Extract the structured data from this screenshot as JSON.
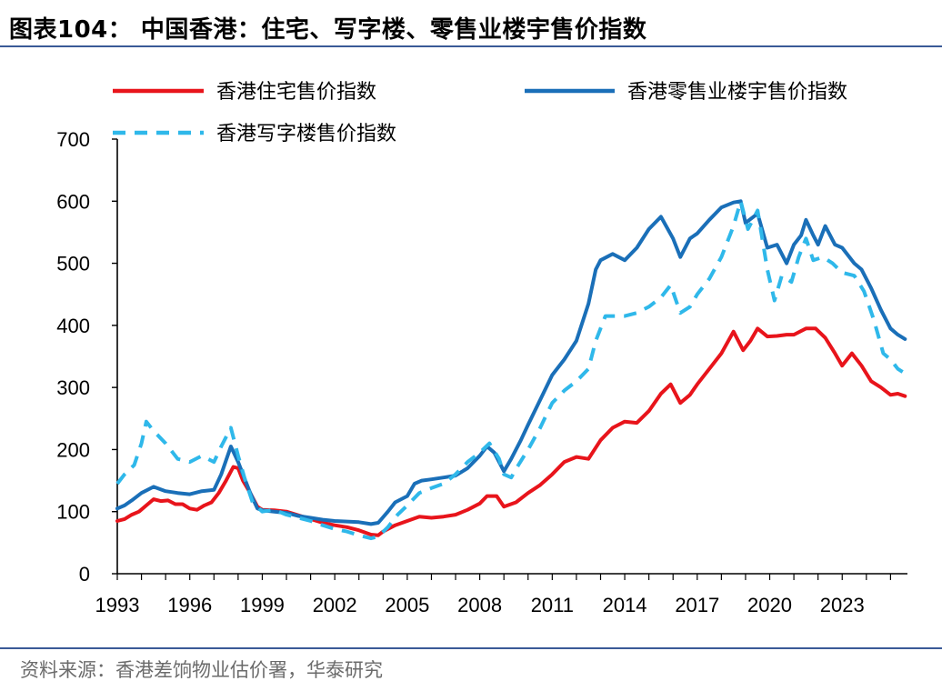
{
  "title": "图表104： 中国香港：住宅、写字楼、零售业楼宇售价指数",
  "source": "资料来源：香港差饷物业估价署，华泰研究",
  "colors": {
    "rule": "#3a5a97"
  },
  "chart_data": {
    "type": "line",
    "title": "",
    "xlabel": "",
    "ylabel": "",
    "ylim": [
      0,
      700
    ],
    "xlim": [
      1993,
      2025.7
    ],
    "yticks": [
      "0",
      "100",
      "200",
      "300",
      "400",
      "500",
      "600",
      "700"
    ],
    "xticks": [
      "1993",
      "1996",
      "1999",
      "2002",
      "2005",
      "2008",
      "2011",
      "2014",
      "2017",
      "2020",
      "2023"
    ],
    "grid": false,
    "legend_position": "top",
    "series": [
      {
        "name": "香港住宅售价指数",
        "color": "#e8141b",
        "dash": "solid",
        "points": [
          [
            1993.0,
            85
          ],
          [
            1993.3,
            88
          ],
          [
            1993.6,
            95
          ],
          [
            1993.9,
            100
          ],
          [
            1994.2,
            110
          ],
          [
            1994.5,
            120
          ],
          [
            1994.8,
            117
          ],
          [
            1995.1,
            118
          ],
          [
            1995.4,
            112
          ],
          [
            1995.7,
            112
          ],
          [
            1996.0,
            105
          ],
          [
            1996.3,
            103
          ],
          [
            1996.6,
            110
          ],
          [
            1996.9,
            115
          ],
          [
            1997.2,
            130
          ],
          [
            1997.5,
            150
          ],
          [
            1997.8,
            172
          ],
          [
            1998.0,
            170
          ],
          [
            1998.2,
            150
          ],
          [
            1998.5,
            130
          ],
          [
            1998.8,
            108
          ],
          [
            1999.0,
            103
          ],
          [
            1999.5,
            102
          ],
          [
            2000.0,
            100
          ],
          [
            2000.5,
            94
          ],
          [
            2001.0,
            88
          ],
          [
            2001.5,
            82
          ],
          [
            2002.0,
            78
          ],
          [
            2002.5,
            75
          ],
          [
            2003.0,
            70
          ],
          [
            2003.5,
            63
          ],
          [
            2003.8,
            62
          ],
          [
            2004.0,
            68
          ],
          [
            2004.5,
            78
          ],
          [
            2005.0,
            85
          ],
          [
            2005.5,
            92
          ],
          [
            2006.0,
            90
          ],
          [
            2006.5,
            92
          ],
          [
            2007.0,
            95
          ],
          [
            2007.5,
            103
          ],
          [
            2008.0,
            113
          ],
          [
            2008.3,
            125
          ],
          [
            2008.7,
            125
          ],
          [
            2009.0,
            108
          ],
          [
            2009.5,
            115
          ],
          [
            2010.0,
            130
          ],
          [
            2010.5,
            143
          ],
          [
            2011.0,
            160
          ],
          [
            2011.5,
            180
          ],
          [
            2012.0,
            188
          ],
          [
            2012.5,
            185
          ],
          [
            2013.0,
            215
          ],
          [
            2013.5,
            235
          ],
          [
            2014.0,
            245
          ],
          [
            2014.5,
            243
          ],
          [
            2015.0,
            262
          ],
          [
            2015.5,
            290
          ],
          [
            2015.9,
            305
          ],
          [
            2016.3,
            275
          ],
          [
            2016.7,
            288
          ],
          [
            2017.0,
            305
          ],
          [
            2017.5,
            330
          ],
          [
            2018.0,
            355
          ],
          [
            2018.5,
            390
          ],
          [
            2018.9,
            360
          ],
          [
            2019.2,
            375
          ],
          [
            2019.5,
            395
          ],
          [
            2019.9,
            382
          ],
          [
            2020.3,
            383
          ],
          [
            2020.7,
            385
          ],
          [
            2021.0,
            385
          ],
          [
            2021.5,
            395
          ],
          [
            2021.9,
            395
          ],
          [
            2022.3,
            380
          ],
          [
            2022.7,
            355
          ],
          [
            2023.0,
            335
          ],
          [
            2023.4,
            355
          ],
          [
            2023.8,
            335
          ],
          [
            2024.2,
            310
          ],
          [
            2024.6,
            300
          ],
          [
            2025.0,
            288
          ],
          [
            2025.3,
            290
          ],
          [
            2025.6,
            286
          ]
        ]
      },
      {
        "name": "香港零售业楼宇售价指数",
        "color": "#1a6fb8",
        "dash": "solid",
        "points": [
          [
            1993.0,
            105
          ],
          [
            1993.3,
            110
          ],
          [
            1993.6,
            118
          ],
          [
            1994.0,
            130
          ],
          [
            1994.5,
            140
          ],
          [
            1995.0,
            133
          ],
          [
            1995.5,
            130
          ],
          [
            1996.0,
            128
          ],
          [
            1996.5,
            133
          ],
          [
            1997.0,
            135
          ],
          [
            1997.3,
            160
          ],
          [
            1997.7,
            205
          ],
          [
            1998.0,
            180
          ],
          [
            1998.5,
            130
          ],
          [
            1998.8,
            105
          ],
          [
            1999.0,
            102
          ],
          [
            1999.5,
            100
          ],
          [
            2000.0,
            98
          ],
          [
            2000.5,
            93
          ],
          [
            2001.0,
            90
          ],
          [
            2001.5,
            87
          ],
          [
            2002.0,
            85
          ],
          [
            2002.5,
            84
          ],
          [
            2003.0,
            83
          ],
          [
            2003.5,
            80
          ],
          [
            2003.8,
            82
          ],
          [
            2004.2,
            100
          ],
          [
            2004.5,
            115
          ],
          [
            2005.0,
            125
          ],
          [
            2005.3,
            145
          ],
          [
            2005.6,
            150
          ],
          [
            2006.0,
            152
          ],
          [
            2006.5,
            155
          ],
          [
            2007.0,
            158
          ],
          [
            2007.5,
            170
          ],
          [
            2008.0,
            190
          ],
          [
            2008.3,
            205
          ],
          [
            2008.6,
            195
          ],
          [
            2009.0,
            165
          ],
          [
            2009.3,
            185
          ],
          [
            2009.7,
            215
          ],
          [
            2010.0,
            240
          ],
          [
            2010.5,
            280
          ],
          [
            2011.0,
            320
          ],
          [
            2011.5,
            345
          ],
          [
            2012.0,
            375
          ],
          [
            2012.5,
            435
          ],
          [
            2012.8,
            490
          ],
          [
            2013.0,
            505
          ],
          [
            2013.5,
            515
          ],
          [
            2014.0,
            505
          ],
          [
            2014.5,
            525
          ],
          [
            2015.0,
            555
          ],
          [
            2015.5,
            575
          ],
          [
            2016.0,
            540
          ],
          [
            2016.3,
            510
          ],
          [
            2016.7,
            540
          ],
          [
            2017.0,
            548
          ],
          [
            2017.5,
            570
          ],
          [
            2018.0,
            590
          ],
          [
            2018.5,
            598
          ],
          [
            2018.8,
            600
          ],
          [
            2019.0,
            565
          ],
          [
            2019.5,
            580
          ],
          [
            2019.9,
            525
          ],
          [
            2020.3,
            530
          ],
          [
            2020.7,
            500
          ],
          [
            2021.0,
            530
          ],
          [
            2021.3,
            545
          ],
          [
            2021.5,
            570
          ],
          [
            2021.8,
            545
          ],
          [
            2022.0,
            530
          ],
          [
            2022.3,
            560
          ],
          [
            2022.7,
            530
          ],
          [
            2023.0,
            525
          ],
          [
            2023.5,
            500
          ],
          [
            2023.8,
            490
          ],
          [
            2024.2,
            460
          ],
          [
            2024.6,
            425
          ],
          [
            2025.0,
            395
          ],
          [
            2025.3,
            385
          ],
          [
            2025.6,
            378
          ]
        ]
      },
      {
        "name": "香港写字楼售价指数",
        "color": "#2fb8ea",
        "dash": "dashed",
        "points": [
          [
            1993.0,
            145
          ],
          [
            1993.3,
            160
          ],
          [
            1993.7,
            175
          ],
          [
            1994.0,
            210
          ],
          [
            1994.2,
            245
          ],
          [
            1994.5,
            230
          ],
          [
            1995.0,
            210
          ],
          [
            1995.5,
            185
          ],
          [
            1996.0,
            180
          ],
          [
            1996.5,
            190
          ],
          [
            1997.0,
            180
          ],
          [
            1997.3,
            205
          ],
          [
            1997.7,
            235
          ],
          [
            1998.0,
            190
          ],
          [
            1998.3,
            150
          ],
          [
            1998.6,
            115
          ],
          [
            1999.0,
            100
          ],
          [
            1999.5,
            103
          ],
          [
            2000.0,
            95
          ],
          [
            2000.5,
            90
          ],
          [
            2001.0,
            85
          ],
          [
            2001.5,
            78
          ],
          [
            2002.0,
            72
          ],
          [
            2002.5,
            68
          ],
          [
            2003.0,
            62
          ],
          [
            2003.5,
            57
          ],
          [
            2003.8,
            60
          ],
          [
            2004.2,
            75
          ],
          [
            2004.6,
            95
          ],
          [
            2005.0,
            110
          ],
          [
            2005.5,
            130
          ],
          [
            2006.0,
            138
          ],
          [
            2006.5,
            145
          ],
          [
            2007.0,
            160
          ],
          [
            2007.5,
            180
          ],
          [
            2008.0,
            195
          ],
          [
            2008.4,
            210
          ],
          [
            2008.8,
            185
          ],
          [
            2009.0,
            160
          ],
          [
            2009.3,
            155
          ],
          [
            2009.6,
            175
          ],
          [
            2010.0,
            200
          ],
          [
            2010.5,
            235
          ],
          [
            2011.0,
            275
          ],
          [
            2011.5,
            295
          ],
          [
            2012.0,
            310
          ],
          [
            2012.5,
            330
          ],
          [
            2012.8,
            375
          ],
          [
            2013.2,
            415
          ],
          [
            2013.5,
            415
          ],
          [
            2014.0,
            415
          ],
          [
            2014.5,
            420
          ],
          [
            2015.0,
            430
          ],
          [
            2015.5,
            445
          ],
          [
            2015.9,
            465
          ],
          [
            2016.3,
            420
          ],
          [
            2016.7,
            430
          ],
          [
            2017.0,
            450
          ],
          [
            2017.5,
            475
          ],
          [
            2018.0,
            510
          ],
          [
            2018.5,
            560
          ],
          [
            2018.8,
            600
          ],
          [
            2019.1,
            555
          ],
          [
            2019.5,
            585
          ],
          [
            2019.9,
            490
          ],
          [
            2020.2,
            440
          ],
          [
            2020.5,
            480
          ],
          [
            2020.9,
            470
          ],
          [
            2021.2,
            510
          ],
          [
            2021.5,
            540
          ],
          [
            2021.8,
            505
          ],
          [
            2022.2,
            510
          ],
          [
            2022.6,
            500
          ],
          [
            2023.0,
            485
          ],
          [
            2023.5,
            480
          ],
          [
            2023.9,
            455
          ],
          [
            2024.3,
            410
          ],
          [
            2024.7,
            355
          ],
          [
            2025.0,
            345
          ],
          [
            2025.3,
            330
          ],
          [
            2025.5,
            325
          ]
        ]
      }
    ]
  }
}
